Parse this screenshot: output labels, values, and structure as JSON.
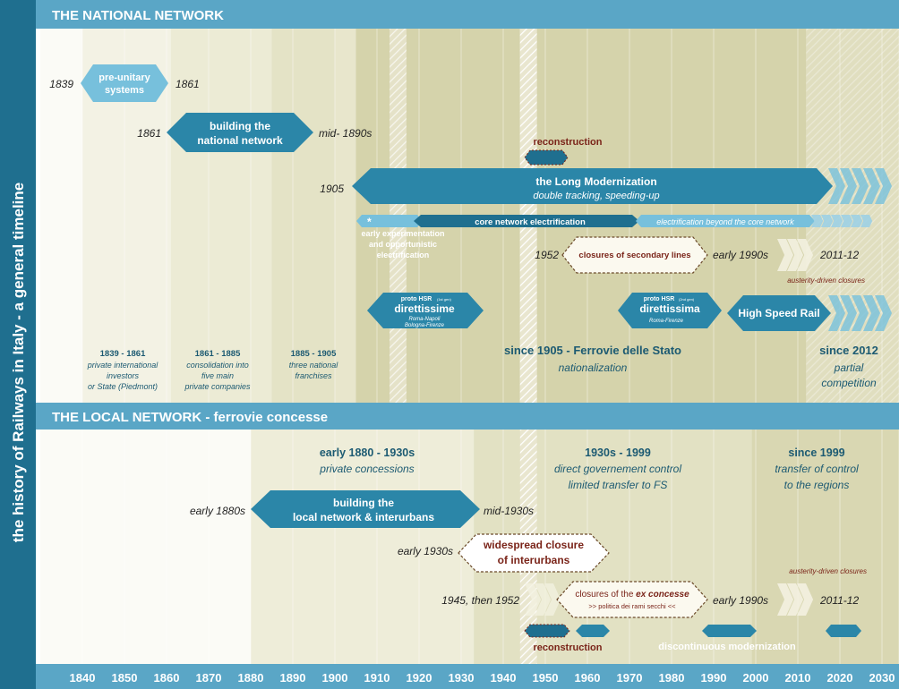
{
  "colors": {
    "teal": "#2b86a8",
    "dark_teal": "#1f6f8f",
    "light_teal": "#77c0dc",
    "title_bar": "#5aa6c6",
    "dark_red": "#7a2419",
    "brown": "#6b4a2a",
    "text_teal": "#1c5a72"
  },
  "side_title": "the history of Railways in Italy - a general timeline",
  "national": {
    "header": "THE NATIONAL NETWORK",
    "pre_unitary": {
      "label1": "pre-unitary",
      "label2": "systems",
      "start": "1839",
      "end": "1861"
    },
    "building": {
      "label1": "building the",
      "label2": "national network",
      "start": "1861",
      "end": "mid- 1890s"
    },
    "reconstruction": "reconstruction",
    "long_mod": {
      "label1": "the Long Modernization",
      "label2": "double tracking, speeding-up",
      "start": "1905"
    },
    "electrification": {
      "star": "*",
      "core": "core network electrification",
      "beyond": "electrification beyond the core network"
    },
    "early_exp": {
      "line1": "early experimentation",
      "line2": "and opportunistic",
      "line3": "electrification"
    },
    "closures": {
      "label": "closures of secondary lines",
      "start": "1952",
      "end": "early 1990s",
      "after": "2011-12",
      "note": "austerity-driven closures"
    },
    "hsr1": {
      "small": "proto HSR",
      "tiny": "(1st gen)",
      "big": "direttissime",
      "sub1": "Roma-Napoli",
      "sub2": "Bologna-Firenze"
    },
    "hsr2": {
      "small": "proto HSR",
      "tiny": "(2nd gen)",
      "big": "direttissima",
      "sub1": "Roma-Firenze"
    },
    "hsr": "High Speed Rail",
    "periods": [
      {
        "title": "1839 - 1861",
        "lines": [
          "private international",
          "investors",
          "or State (Piedmont)"
        ]
      },
      {
        "title": "1861 - 1885",
        "lines": [
          "consolidation into",
          "five main",
          "private companies"
        ]
      },
      {
        "title": "1885 - 1905",
        "lines": [
          "three  national",
          "franchises"
        ]
      }
    ],
    "fs": {
      "title": "since 1905 - Ferrovie delle Stato",
      "sub": "nationalization"
    },
    "since2012": {
      "title": "since 2012",
      "line1": "partial",
      "line2": "competition"
    }
  },
  "local": {
    "header": "THE LOCAL NETWORK - ferrovie concesse",
    "periods": [
      {
        "title": "early 1880 - 1930s",
        "lines": [
          "private concessions"
        ]
      },
      {
        "title": "1930s - 1999",
        "lines": [
          "direct governement control",
          "limited transfer to FS"
        ]
      },
      {
        "title": "since 1999",
        "lines": [
          "transfer of control",
          "to the regions"
        ]
      }
    ],
    "building": {
      "label1": "building the",
      "label2": "local network & interurbans",
      "start": "early 1880s",
      "end": "mid-1930s"
    },
    "widespread": {
      "label1": "widespread closure",
      "label2": "of interurbans",
      "start": "early 1930s"
    },
    "closures": {
      "label_pre": "closures of the ",
      "label_em": "ex concesse",
      "sub": ">> politica dei rami secchi <<",
      "start": "1945, then 1952",
      "end": "early 1990s",
      "after": "2011-12",
      "note": "austerity-driven closures"
    },
    "reconstruction": "reconstruction",
    "discontinuous": "discontinuous modernization"
  },
  "axis": {
    "years": [
      "1840",
      "1850",
      "1860",
      "1870",
      "1880",
      "1890",
      "1900",
      "1910",
      "1920",
      "1930",
      "1940",
      "1950",
      "1960",
      "1970",
      "1980",
      "1990",
      "2000",
      "2010",
      "2020",
      "2030"
    ]
  }
}
